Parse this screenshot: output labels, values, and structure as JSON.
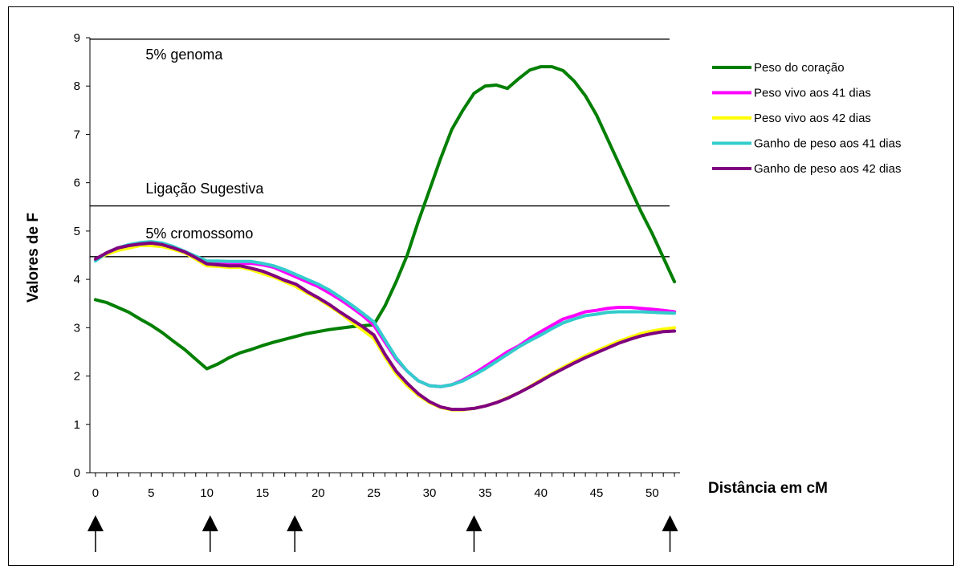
{
  "chart_data": {
    "type": "line",
    "xlabel": "Distância em cM",
    "ylabel": "Valores de F",
    "xlim": [
      -0.5,
      52.5
    ],
    "ylim": [
      0,
      9
    ],
    "xticks": [
      0,
      5,
      10,
      15,
      20,
      25,
      30,
      35,
      40,
      45,
      50
    ],
    "yticks": [
      0,
      1,
      2,
      3,
      4,
      5,
      6,
      7,
      8,
      9
    ],
    "legend_position": "right",
    "grid": false,
    "thresholds": [
      {
        "label": "5% genoma",
        "y": 8.97,
        "label_x": 4.5,
        "label_y": 8.55
      },
      {
        "label": "Ligação Sugestiva",
        "y": 5.52,
        "label_x": 4.5,
        "label_y": 5.78
      },
      {
        "label": "5% cromossomo",
        "y": 4.47,
        "label_x": 4.5,
        "label_y": 4.85
      }
    ],
    "markers_x": [
      0,
      10.3,
      17.9,
      34,
      51.6
    ],
    "series": [
      {
        "name": "Peso do coração",
        "color": "#007f00",
        "x": [
          0,
          1,
          2,
          3,
          4,
          5,
          6,
          7,
          8,
          9,
          10,
          11,
          12,
          13,
          14,
          15,
          16,
          17,
          18,
          19,
          20,
          21,
          22,
          23,
          24,
          25,
          26,
          27,
          28,
          29,
          30,
          31,
          32,
          33,
          34,
          35,
          36,
          37,
          38,
          39,
          40,
          41,
          42,
          43,
          44,
          45,
          46,
          47,
          48,
          49,
          50,
          51,
          52
        ],
        "y": [
          3.58,
          3.52,
          3.42,
          3.32,
          3.18,
          3.05,
          2.9,
          2.72,
          2.55,
          2.35,
          2.15,
          2.25,
          2.38,
          2.48,
          2.55,
          2.63,
          2.7,
          2.76,
          2.82,
          2.88,
          2.92,
          2.96,
          2.99,
          3.02,
          3.04,
          3.06,
          3.45,
          3.95,
          4.5,
          5.2,
          5.85,
          6.5,
          7.1,
          7.5,
          7.85,
          8.0,
          8.02,
          7.95,
          8.15,
          8.33,
          8.4,
          8.4,
          8.32,
          8.1,
          7.8,
          7.4,
          6.9,
          6.4,
          5.9,
          5.4,
          4.95,
          4.45,
          3.95
        ]
      },
      {
        "name": "Peso vivo aos 41 dias",
        "color": "#ff00ff",
        "x": [
          0,
          1,
          2,
          3,
          4,
          5,
          6,
          7,
          8,
          9,
          10,
          11,
          12,
          13,
          14,
          15,
          16,
          17,
          18,
          19,
          20,
          21,
          22,
          23,
          24,
          25,
          26,
          27,
          28,
          29,
          30,
          31,
          32,
          33,
          34,
          35,
          36,
          37,
          38,
          39,
          40,
          41,
          42,
          43,
          44,
          45,
          46,
          47,
          48,
          49,
          50,
          51,
          52
        ],
        "y": [
          4.4,
          4.55,
          4.65,
          4.7,
          4.75,
          4.75,
          4.72,
          4.65,
          4.55,
          4.45,
          4.35,
          4.35,
          4.33,
          4.33,
          4.33,
          4.3,
          4.25,
          4.15,
          4.05,
          3.95,
          3.85,
          3.72,
          3.58,
          3.42,
          3.25,
          3.05,
          2.7,
          2.35,
          2.1,
          1.9,
          1.8,
          1.78,
          1.82,
          1.92,
          2.05,
          2.2,
          2.35,
          2.5,
          2.62,
          2.78,
          2.92,
          3.05,
          3.18,
          3.25,
          3.33,
          3.36,
          3.4,
          3.42,
          3.42,
          3.4,
          3.38,
          3.36,
          3.33
        ]
      },
      {
        "name": "Peso vivo aos 42 dias",
        "color": "#ffff00",
        "x": [
          0,
          1,
          2,
          3,
          4,
          5,
          6,
          7,
          8,
          9,
          10,
          11,
          12,
          13,
          14,
          15,
          16,
          17,
          18,
          19,
          20,
          21,
          22,
          23,
          24,
          25,
          26,
          27,
          28,
          29,
          30,
          31,
          32,
          33,
          34,
          35,
          36,
          37,
          38,
          39,
          40,
          41,
          42,
          43,
          44,
          45,
          46,
          47,
          48,
          49,
          50,
          51,
          52
        ],
        "y": [
          4.4,
          4.52,
          4.6,
          4.65,
          4.7,
          4.7,
          4.68,
          4.62,
          4.55,
          4.42,
          4.28,
          4.27,
          4.25,
          4.25,
          4.2,
          4.12,
          4.05,
          3.95,
          3.85,
          3.72,
          3.6,
          3.45,
          3.3,
          3.12,
          2.95,
          2.78,
          2.4,
          2.05,
          1.8,
          1.6,
          1.45,
          1.35,
          1.3,
          1.3,
          1.33,
          1.38,
          1.45,
          1.55,
          1.65,
          1.78,
          1.92,
          2.05,
          2.18,
          2.3,
          2.42,
          2.52,
          2.62,
          2.72,
          2.8,
          2.88,
          2.93,
          2.97,
          3.0
        ]
      },
      {
        "name": "Ganho de peso aos 41 dias",
        "color": "#33cccc",
        "x": [
          0,
          1,
          2,
          3,
          4,
          5,
          6,
          7,
          8,
          9,
          10,
          11,
          12,
          13,
          14,
          15,
          16,
          17,
          18,
          19,
          20,
          21,
          22,
          23,
          24,
          25,
          26,
          27,
          28,
          29,
          30,
          31,
          32,
          33,
          34,
          35,
          36,
          37,
          38,
          39,
          40,
          41,
          42,
          43,
          44,
          45,
          46,
          47,
          48,
          49,
          50,
          51,
          52
        ],
        "y": [
          4.38,
          4.55,
          4.65,
          4.72,
          4.76,
          4.78,
          4.75,
          4.68,
          4.58,
          4.48,
          4.38,
          4.38,
          4.37,
          4.37,
          4.37,
          4.33,
          4.28,
          4.2,
          4.1,
          4.0,
          3.9,
          3.78,
          3.63,
          3.47,
          3.3,
          3.12,
          2.75,
          2.38,
          2.1,
          1.9,
          1.8,
          1.78,
          1.82,
          1.9,
          2.02,
          2.15,
          2.3,
          2.45,
          2.6,
          2.73,
          2.85,
          2.98,
          3.1,
          3.18,
          3.25,
          3.28,
          3.32,
          3.33,
          3.33,
          3.33,
          3.32,
          3.31,
          3.3
        ]
      },
      {
        "name": "Ganho de peso aos 42 dias",
        "color": "#800080",
        "x": [
          0,
          1,
          2,
          3,
          4,
          5,
          6,
          7,
          8,
          9,
          10,
          11,
          12,
          13,
          14,
          15,
          16,
          17,
          18,
          19,
          20,
          21,
          22,
          23,
          24,
          25,
          26,
          27,
          28,
          29,
          30,
          31,
          32,
          33,
          34,
          35,
          36,
          37,
          38,
          39,
          40,
          41,
          42,
          43,
          44,
          45,
          46,
          47,
          48,
          49,
          50,
          51,
          52
        ],
        "y": [
          4.42,
          4.55,
          4.65,
          4.7,
          4.73,
          4.75,
          4.72,
          4.65,
          4.57,
          4.45,
          4.32,
          4.3,
          4.28,
          4.28,
          4.23,
          4.17,
          4.08,
          3.98,
          3.9,
          3.75,
          3.62,
          3.48,
          3.32,
          3.17,
          3.02,
          2.85,
          2.45,
          2.1,
          1.85,
          1.63,
          1.47,
          1.36,
          1.31,
          1.31,
          1.33,
          1.38,
          1.45,
          1.54,
          1.65,
          1.77,
          1.9,
          2.03,
          2.15,
          2.27,
          2.38,
          2.48,
          2.58,
          2.68,
          2.76,
          2.83,
          2.88,
          2.92,
          2.93
        ]
      }
    ]
  }
}
